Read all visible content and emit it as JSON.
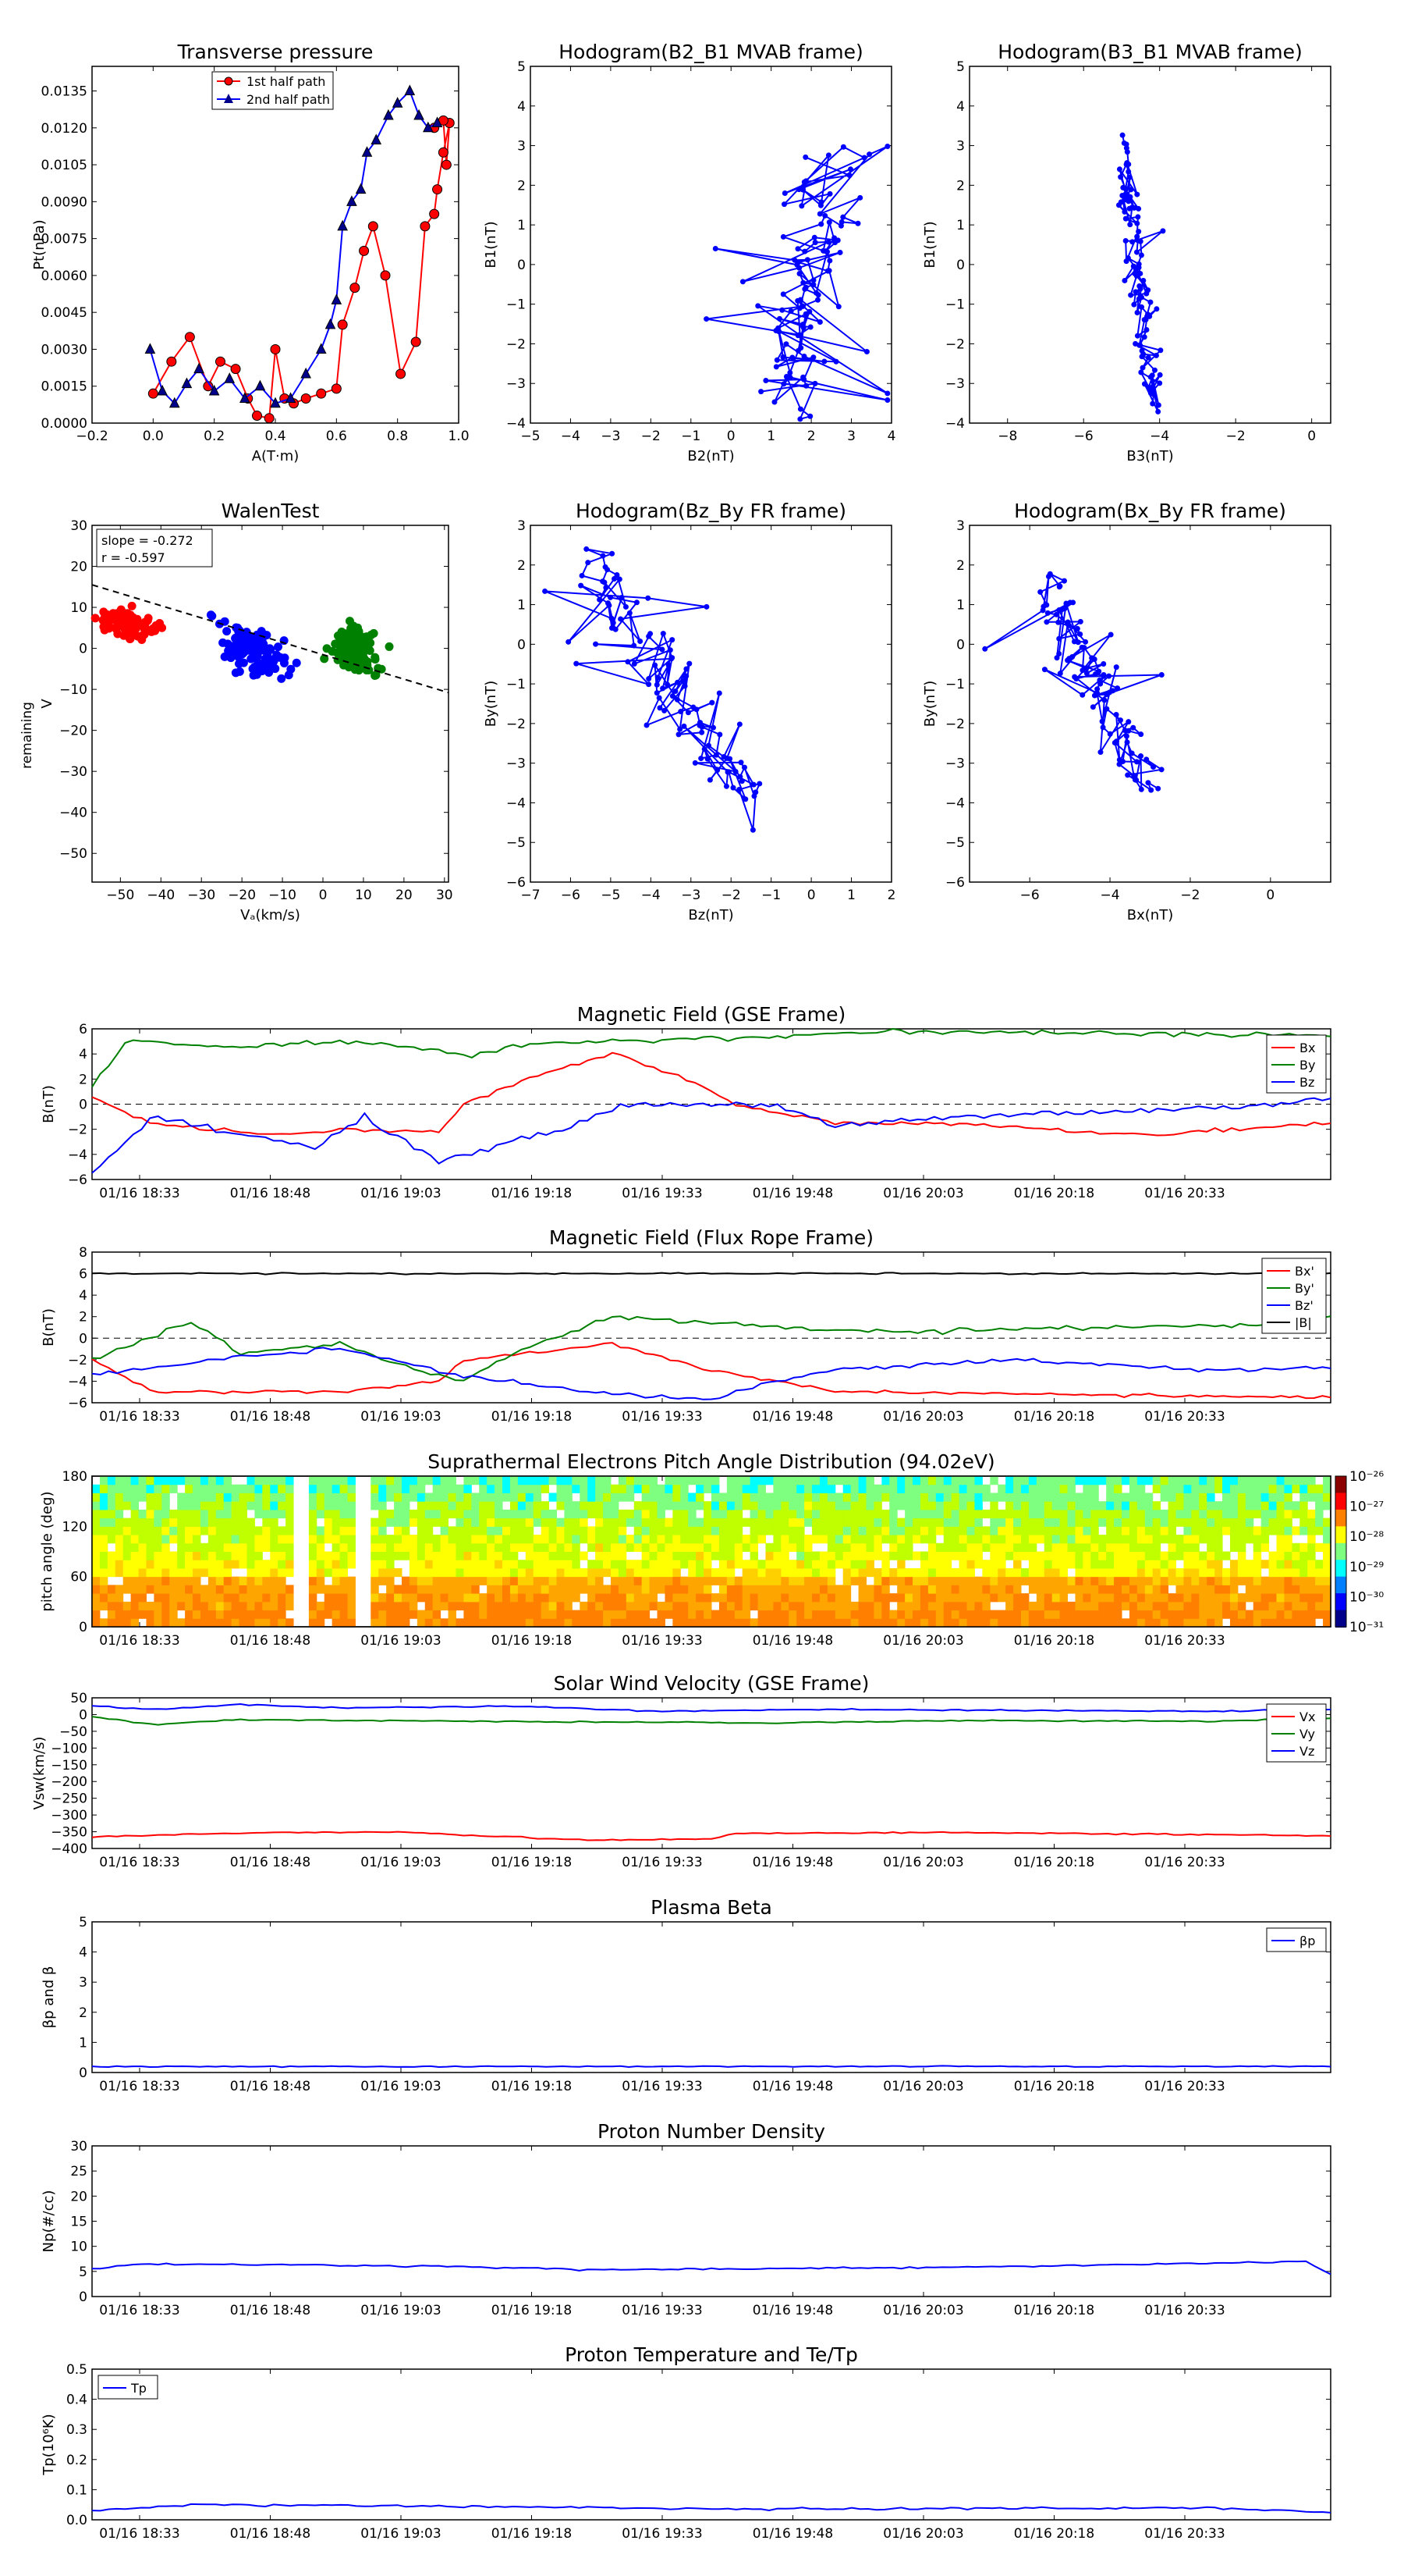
{
  "time_ticks": [
    "01/16 18:33",
    "01/16 18:48",
    "01/16 19:03",
    "01/16 19:18",
    "01/16 19:33",
    "01/16 19:48",
    "01/16 20:03",
    "01/16 20:18",
    "01/16 20:33"
  ],
  "colors": {
    "red": "#ff0000",
    "green": "#008000",
    "blue": "#0000ff",
    "black": "#000000",
    "navy": "#00008b"
  },
  "chart_data": [
    {
      "id": "pt",
      "type": "scatter",
      "title": "Transverse pressure",
      "xlabel": "A(T·m)",
      "ylabel": "Pt(nPa)",
      "xlim": [
        -0.2,
        1.0
      ],
      "ylim": [
        0,
        0.0145
      ],
      "xticks": [
        "−0.2",
        "0.0",
        "0.2",
        "0.4",
        "0.6",
        "0.8",
        "1.0"
      ],
      "yticks": [
        "0.0000",
        "0.0015",
        "0.0030",
        "0.0045",
        "0.0060",
        "0.0075",
        "0.0090",
        "0.0105",
        "0.0120",
        "0.0135"
      ],
      "legend": [
        "1st half path",
        "2nd half path"
      ]
    },
    {
      "id": "h1",
      "type": "line",
      "title": "Hodogram(B2_B1 MVAB frame)",
      "xlabel": "B2(nT)",
      "ylabel": "B1(nT)",
      "xlim": [
        -5,
        4
      ],
      "ylim": [
        -4,
        5
      ],
      "xticks": [
        "−5",
        "−4",
        "−3",
        "−2",
        "−1",
        "0",
        "1",
        "2",
        "3",
        "4"
      ],
      "yticks": [
        "−4",
        "−3",
        "−2",
        "−1",
        "0",
        "1",
        "2",
        "3",
        "4",
        "5"
      ]
    },
    {
      "id": "h2",
      "type": "line",
      "title": "Hodogram(B3_B1 MVAB frame)",
      "xlabel": "B3(nT)",
      "ylabel": "B1(nT)",
      "xlim": [
        -9,
        0.5
      ],
      "ylim": [
        -4,
        5
      ],
      "xticks": [
        "−8",
        "−6",
        "−4",
        "−2",
        "0"
      ],
      "yticks": [
        "−4",
        "−3",
        "−2",
        "−1",
        "0",
        "1",
        "2",
        "3",
        "4",
        "5"
      ]
    },
    {
      "id": "walen",
      "type": "scatter",
      "title": "WalenTest",
      "xlabel": "Vₐ(km/s)",
      "ylabel": "V",
      "ylim": [
        -57,
        30
      ],
      "xlim": [
        -57,
        31
      ],
      "xticks": [
        "−50",
        "−40",
        "−30",
        "−20",
        "−10",
        "0",
        "10",
        "20",
        "30"
      ],
      "yticks": [
        "−50",
        "−40",
        "−30",
        "−20",
        "−10",
        "0",
        "10",
        "20",
        "30"
      ],
      "annotation": [
        "slope = -0.272",
        "r = -0.597"
      ],
      "slope": -0.272
    },
    {
      "id": "h3",
      "type": "line",
      "title": "Hodogram(Bz_By FR frame)",
      "xlabel": "Bz(nT)",
      "ylabel": "By(nT)",
      "xlim": [
        -7,
        2
      ],
      "ylim": [
        -6,
        3
      ],
      "xticks": [
        "−7",
        "−6",
        "−5",
        "−4",
        "−3",
        "−2",
        "−1",
        "0",
        "1",
        "2"
      ],
      "yticks": [
        "−6",
        "−5",
        "−4",
        "−3",
        "−2",
        "−1",
        "0",
        "1",
        "2",
        "3"
      ]
    },
    {
      "id": "h4",
      "type": "line",
      "title": "Hodogram(Bx_By FR frame)",
      "xlabel": "Bx(nT)",
      "ylabel": "By(nT)",
      "xlim": [
        -7.5,
        1.5
      ],
      "ylim": [
        -6,
        3
      ],
      "xticks": [
        "−6",
        "−4",
        "−2",
        "0"
      ],
      "yticks": [
        "−6",
        "−5",
        "−4",
        "−3",
        "−2",
        "−1",
        "0",
        "1",
        "2",
        "3"
      ]
    },
    {
      "id": "mag",
      "type": "line",
      "title": "Magnetic Field (GSE Frame)",
      "ylabel": "B(nT)",
      "ylim": [
        -6,
        6
      ],
      "yticks": [
        "−6",
        "−4",
        "−2",
        "0",
        "2",
        "4",
        "6"
      ],
      "series": [
        "Bx",
        "By",
        "Bz"
      ]
    },
    {
      "id": "magfr",
      "type": "line",
      "title": "Magnetic Field (Flux Rope Frame)",
      "ylabel": "B(nT)",
      "ylim": [
        -6,
        8
      ],
      "yticks": [
        "−6",
        "−4",
        "−2",
        "0",
        "2",
        "4",
        "6",
        "8"
      ],
      "series": [
        "Bx'",
        "By'",
        "Bz'",
        "|B|"
      ]
    },
    {
      "id": "pad",
      "type": "heatmap",
      "title": "Suprathermal Electrons Pitch Angle Distribution (94.02eV)",
      "ylabel": "pitch angle (deg)",
      "ylim": [
        0,
        180
      ],
      "yticks": [
        "0",
        "60",
        "120",
        "180"
      ],
      "colorbar_ticks": [
        "10⁻²⁶",
        "10⁻²⁷",
        "10⁻²⁸",
        "10⁻²⁹",
        "10⁻³⁰",
        "10⁻³¹"
      ]
    },
    {
      "id": "vsw",
      "type": "line",
      "title": "Solar Wind Velocity (GSE Frame)",
      "ylabel": "Vsw(km/s)",
      "ylim": [
        -400,
        50
      ],
      "yticks": [
        "50",
        "0",
        "−50",
        "−100",
        "−150",
        "−200",
        "−250",
        "−300",
        "−350",
        "−400"
      ],
      "series": [
        "Vx",
        "Vy",
        "Vz"
      ]
    },
    {
      "id": "beta",
      "type": "line",
      "title": "Plasma Beta",
      "ylabel": "βp and β",
      "ylim": [
        0,
        5
      ],
      "yticks": [
        "0",
        "1",
        "2",
        "3",
        "4",
        "5"
      ],
      "series": [
        "βp"
      ]
    },
    {
      "id": "np",
      "type": "line",
      "title": "Proton Number Density",
      "ylabel": "Np(#/cc)",
      "ylim": [
        0,
        30
      ],
      "yticks": [
        "0",
        "5",
        "10",
        "15",
        "20",
        "25",
        "30"
      ]
    },
    {
      "id": "tp",
      "type": "line",
      "title": "Proton Temperature and Te/Tp",
      "ylabel": "Tp(10⁶K)",
      "ylim": [
        0,
        0.5
      ],
      "yticks": [
        "0.0",
        "0.1",
        "0.2",
        "0.3",
        "0.4",
        "0.5"
      ],
      "series": [
        "Tp"
      ]
    }
  ]
}
